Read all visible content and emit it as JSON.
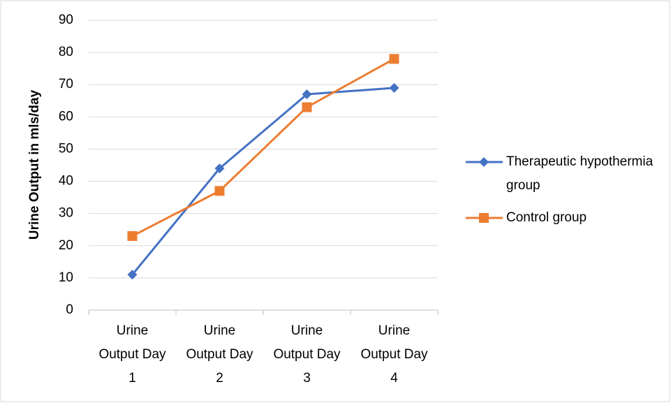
{
  "chart_data": {
    "type": "line",
    "y_label": "Urine Output in mls/day",
    "categories": [
      "Urine Output Day 1",
      "Urine Output Day 2",
      "Urine Output Day 3",
      "Urine Output Day 4"
    ],
    "series": [
      {
        "name": "Therapeutic hypothermia group",
        "color": "#4472c4",
        "marker": "diamond",
        "values": [
          11,
          44,
          67,
          69
        ]
      },
      {
        "name": "Control group",
        "color": "#ed7d31",
        "marker": "square",
        "values": [
          23,
          37,
          63,
          78
        ]
      }
    ],
    "ylim": [
      0,
      90
    ],
    "yticks": [
      0,
      10,
      20,
      30,
      40,
      50,
      60,
      70,
      80,
      90
    ],
    "grid": true,
    "legend": "right"
  }
}
